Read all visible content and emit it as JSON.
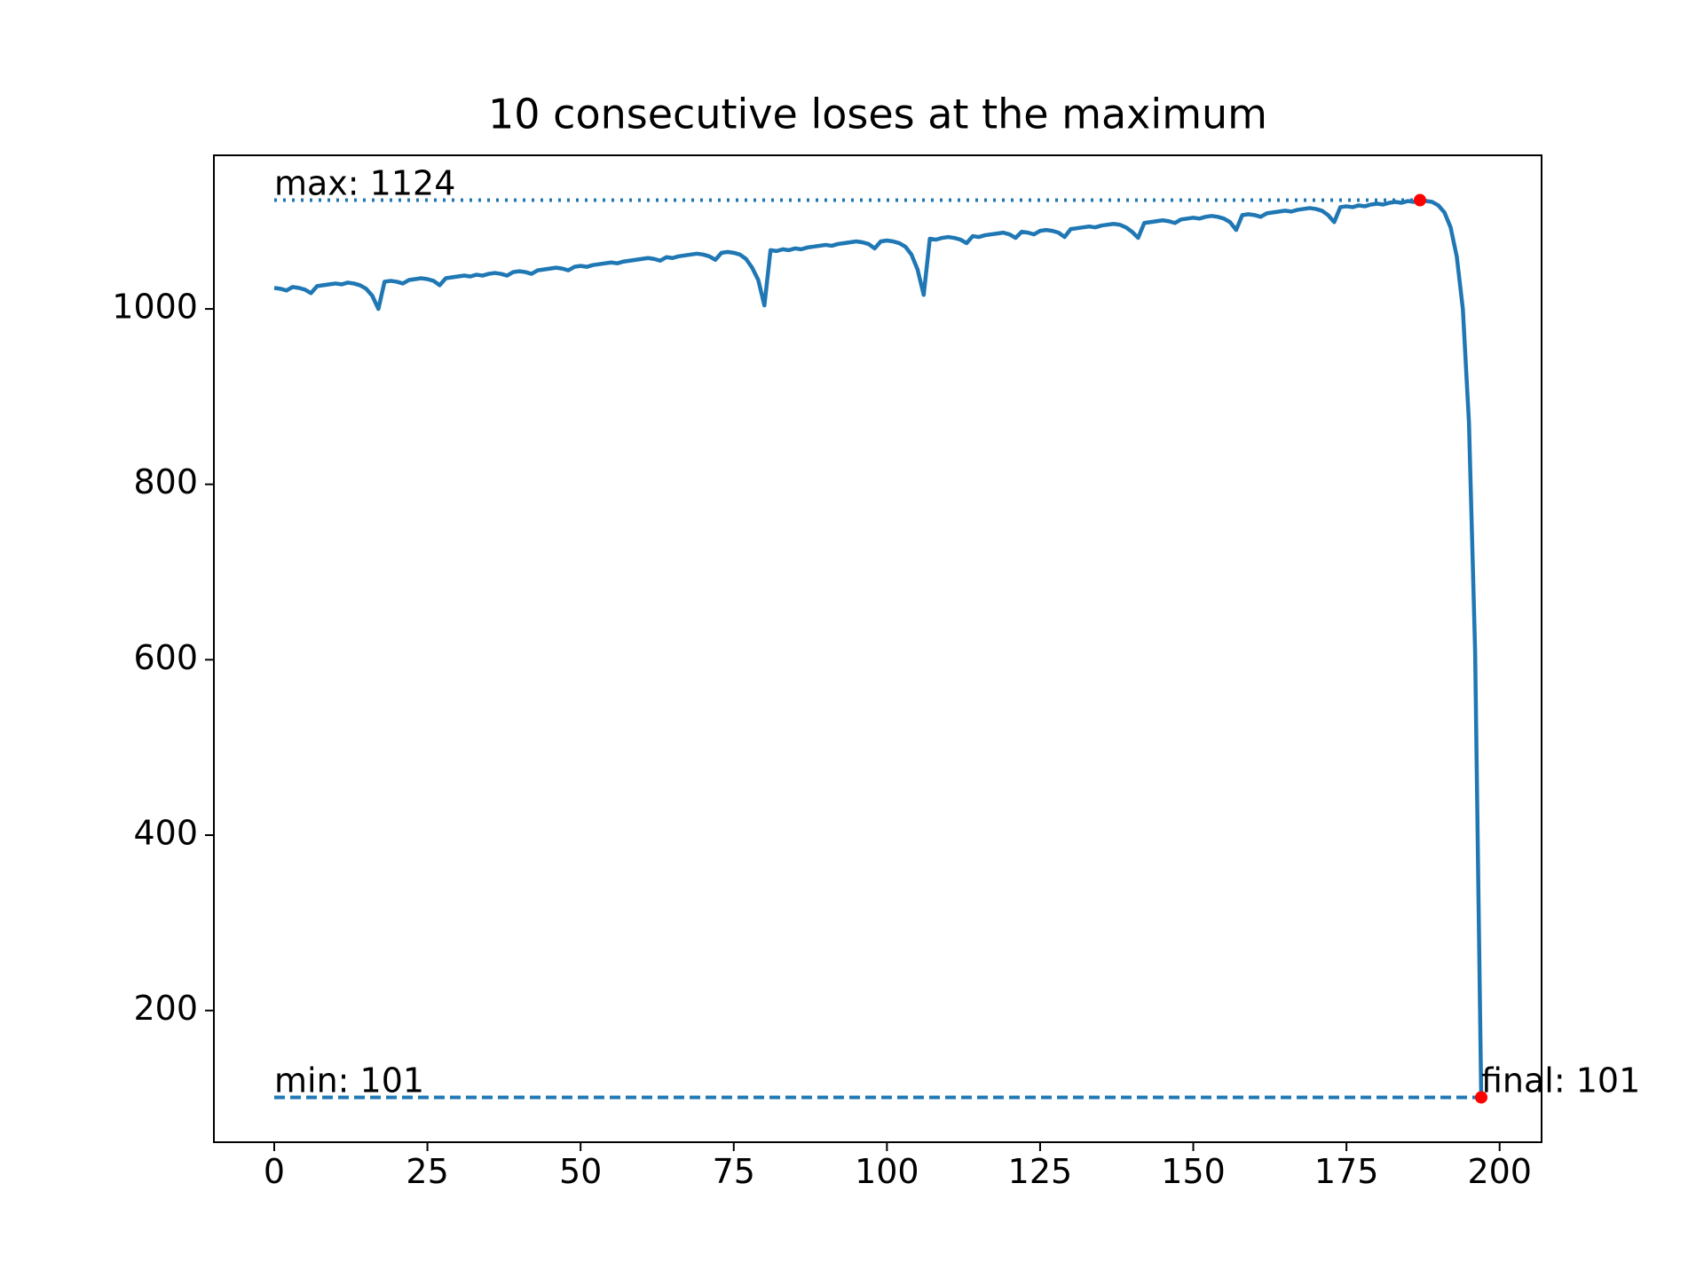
{
  "chart_data": {
    "type": "line",
    "title": "10 consecutive loses at the maximum",
    "x": [
      0,
      1,
      2,
      3,
      4,
      5,
      6,
      7,
      8,
      9,
      10,
      11,
      12,
      13,
      14,
      15,
      16,
      17,
      18,
      19,
      20,
      21,
      22,
      23,
      24,
      25,
      26,
      27,
      28,
      29,
      30,
      31,
      32,
      33,
      34,
      35,
      36,
      37,
      38,
      39,
      40,
      41,
      42,
      43,
      44,
      45,
      46,
      47,
      48,
      49,
      50,
      51,
      52,
      53,
      54,
      55,
      56,
      57,
      58,
      59,
      60,
      61,
      62,
      63,
      64,
      65,
      66,
      67,
      68,
      69,
      70,
      71,
      72,
      73,
      74,
      75,
      76,
      77,
      78,
      79,
      80,
      81,
      82,
      83,
      84,
      85,
      86,
      87,
      88,
      89,
      90,
      91,
      92,
      93,
      94,
      95,
      96,
      97,
      98,
      99,
      100,
      101,
      102,
      103,
      104,
      105,
      106,
      107,
      108,
      109,
      110,
      111,
      112,
      113,
      114,
      115,
      116,
      117,
      118,
      119,
      120,
      121,
      122,
      123,
      124,
      125,
      126,
      127,
      128,
      129,
      130,
      131,
      132,
      133,
      134,
      135,
      136,
      137,
      138,
      139,
      140,
      141,
      142,
      143,
      144,
      145,
      146,
      147,
      148,
      149,
      150,
      151,
      152,
      153,
      154,
      155,
      156,
      157,
      158,
      159,
      160,
      161,
      162,
      163,
      164,
      165,
      166,
      167,
      168,
      169,
      170,
      171,
      172,
      173,
      174,
      175,
      176,
      177,
      178,
      179,
      180,
      181,
      182,
      183,
      184,
      185,
      186,
      187,
      188,
      189,
      190,
      191,
      192,
      193,
      194,
      195,
      196,
      197
    ],
    "series": [
      {
        "color": "#1f77b4",
        "values": [
          1024,
          1023,
          1021,
          1025,
          1024,
          1022,
          1018,
          1026,
          1027,
          1028,
          1029,
          1028,
          1030,
          1029,
          1027,
          1023,
          1015,
          1000,
          1031,
          1032,
          1031,
          1029,
          1033,
          1034,
          1035,
          1034,
          1032,
          1027,
          1035,
          1036,
          1037,
          1038,
          1037,
          1039,
          1038,
          1040,
          1041,
          1040,
          1038,
          1042,
          1043,
          1042,
          1040,
          1044,
          1045,
          1046,
          1047,
          1046,
          1044,
          1048,
          1049,
          1048,
          1050,
          1051,
          1052,
          1053,
          1052,
          1054,
          1055,
          1056,
          1057,
          1058,
          1057,
          1055,
          1059,
          1058,
          1060,
          1061,
          1062,
          1063,
          1062,
          1060,
          1056,
          1064,
          1065,
          1064,
          1062,
          1057,
          1047,
          1033,
          1004,
          1067,
          1066,
          1068,
          1067,
          1069,
          1068,
          1070,
          1071,
          1072,
          1073,
          1072,
          1074,
          1075,
          1076,
          1077,
          1076,
          1074,
          1069,
          1077,
          1078,
          1077,
          1075,
          1071,
          1062,
          1045,
          1016,
          1080,
          1079,
          1081,
          1082,
          1081,
          1079,
          1075,
          1083,
          1082,
          1084,
          1085,
          1086,
          1087,
          1085,
          1081,
          1088,
          1087,
          1085,
          1089,
          1090,
          1089,
          1087,
          1082,
          1091,
          1092,
          1093,
          1094,
          1093,
          1095,
          1096,
          1097,
          1096,
          1093,
          1088,
          1081,
          1098,
          1099,
          1100,
          1101,
          1100,
          1098,
          1102,
          1103,
          1104,
          1103,
          1105,
          1106,
          1105,
          1103,
          1099,
          1090,
          1107,
          1108,
          1107,
          1105,
          1109,
          1110,
          1111,
          1112,
          1111,
          1113,
          1114,
          1115,
          1114,
          1112,
          1107,
          1099,
          1116,
          1117,
          1116,
          1118,
          1117,
          1119,
          1120,
          1119,
          1121,
          1122,
          1121,
          1123,
          1122,
          1124,
          1123,
          1122,
          1118,
          1110,
          1093,
          1060,
          1000,
          870,
          610,
          101
        ]
      }
    ],
    "hlines": [
      {
        "y": 1124,
        "xmin": 0,
        "xmax": 187,
        "style": "dotted",
        "color": "#1f77b4"
      },
      {
        "y": 101,
        "xmin": 0,
        "xmax": 197,
        "style": "dashed",
        "color": "#1f77b4"
      }
    ],
    "points": [
      {
        "x": 187,
        "y": 1124,
        "color": "#ff0000"
      },
      {
        "x": 197,
        "y": 101,
        "color": "#ff0000"
      }
    ],
    "annotations": [
      {
        "text": "max: 1124",
        "x": 0,
        "y": 1124
      },
      {
        "text": "min: 101",
        "x": 0,
        "y": 101
      },
      {
        "text": "final: 101",
        "x": 197,
        "y": 101
      }
    ],
    "xlim": [
      -9.85,
      206.85
    ],
    "ylim": [
      49.85,
      1175.15
    ],
    "xticks": [
      0,
      25,
      50,
      75,
      100,
      125,
      150,
      175,
      200
    ],
    "yticks": [
      200,
      400,
      600,
      800,
      1000
    ]
  }
}
